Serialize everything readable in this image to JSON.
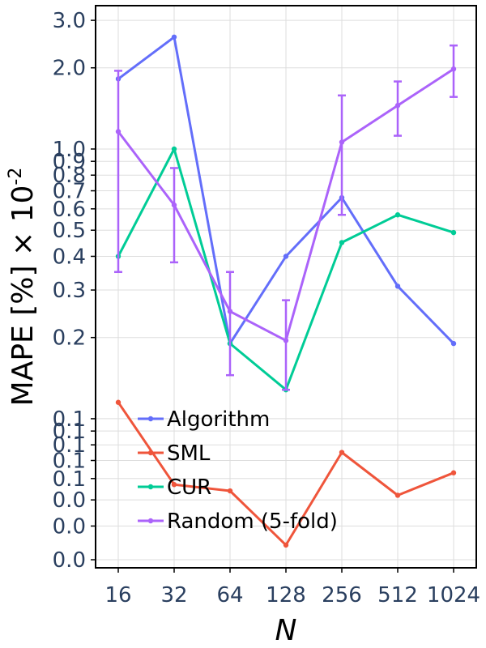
{
  "chart_data": {
    "type": "line",
    "x_scale": "log2",
    "y_scale": "log",
    "xlabel": "N",
    "ylabel": "MAPE [%] × 10",
    "ylabel_superscript": "-2",
    "x": [
      16,
      32,
      64,
      128,
      256,
      512,
      1024
    ],
    "x_tick_labels": [
      "16",
      "32",
      "64",
      "128",
      "256",
      "512",
      "1024"
    ],
    "y_ticks": [
      0.03,
      0.04,
      0.05,
      0.06,
      0.07,
      0.08,
      0.09,
      0.1,
      0.2,
      0.3,
      0.4,
      0.5,
      0.6,
      0.7,
      0.8,
      0.9,
      1.0,
      2.0,
      3.0
    ],
    "y_tick_labels": [
      "0.0",
      "0.0",
      "0.0",
      "0.1",
      "0.1",
      "0.1",
      "0.1",
      "0.1",
      "0.2",
      "0.3",
      "0.4",
      "0.5",
      "0.6",
      "0.7",
      "0.8",
      "0.9",
      "1.0",
      "2.0",
      "3.0"
    ],
    "ylim": [
      0.028,
      3.4
    ],
    "grid": true,
    "legend_position": "bottom-left",
    "series": [
      {
        "name": "Algorithm",
        "color": "#636efa",
        "values": [
          1.82,
          2.6,
          0.19,
          0.4,
          0.66,
          0.31,
          0.19
        ]
      },
      {
        "name": "SML",
        "color": "#ef553b",
        "values": [
          0.115,
          0.057,
          0.054,
          0.034,
          0.075,
          0.052,
          0.063
        ]
      },
      {
        "name": "CUR",
        "color": "#00cc96",
        "values": [
          0.4,
          1.0,
          0.19,
          0.128,
          0.45,
          0.57,
          0.49
        ]
      },
      {
        "name": "Random (5-fold)",
        "color": "#ab63fa",
        "values": [
          1.16,
          0.62,
          0.25,
          0.195,
          1.06,
          1.45,
          1.98
        ],
        "error_low": [
          0.35,
          0.38,
          0.145,
          0.128,
          0.57,
          1.12,
          1.56
        ],
        "error_high": [
          1.95,
          0.85,
          0.35,
          0.275,
          1.58,
          1.78,
          2.42
        ]
      }
    ]
  }
}
